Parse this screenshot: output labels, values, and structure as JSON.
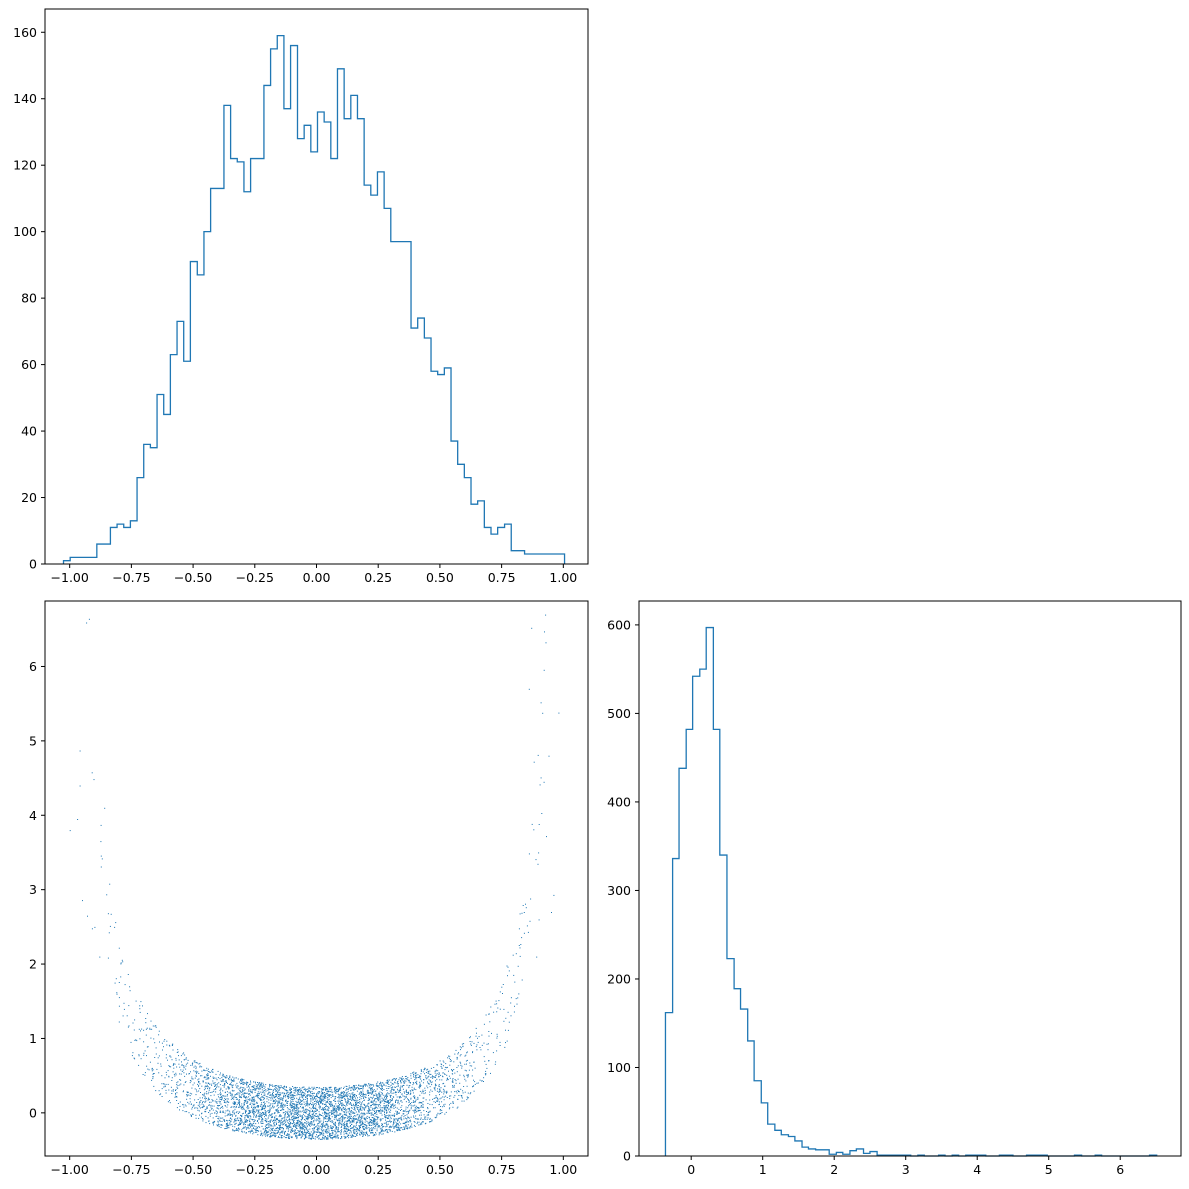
{
  "chart_data": [
    {
      "type": "histogram",
      "panel": "top-left",
      "title": "",
      "xlabel": "",
      "ylabel": "",
      "xlim": [
        -1.1,
        1.1
      ],
      "ylim": [
        0,
        167
      ],
      "xticks": [
        -1.0,
        -0.75,
        -0.5,
        -0.25,
        0.0,
        0.25,
        0.5,
        0.75,
        1.0
      ],
      "xtick_labels": [
        "−1.00",
        "−0.75",
        "−0.50",
        "−0.25",
        "0.00",
        "0.25",
        "0.50",
        "0.75",
        "1.00"
      ],
      "yticks": [
        0,
        20,
        40,
        60,
        80,
        100,
        120,
        140,
        160
      ],
      "ytick_labels": [
        "0",
        "20",
        "40",
        "60",
        "80",
        "100",
        "120",
        "140",
        "160"
      ],
      "histtype": "step",
      "color": "#1f77b4",
      "bin_edges": [
        -1.025,
        -0.998,
        -0.971,
        -0.944,
        -0.917,
        -0.89,
        -0.862,
        -0.835,
        -0.808,
        -0.781,
        -0.754,
        -0.727,
        -0.7,
        -0.673,
        -0.646,
        -0.619,
        -0.592,
        -0.565,
        -0.538,
        -0.511,
        -0.483,
        -0.456,
        -0.429,
        -0.402,
        -0.375,
        -0.348,
        -0.321,
        -0.294,
        -0.267,
        -0.24,
        -0.213,
        -0.186,
        -0.159,
        -0.132,
        -0.105,
        -0.077,
        -0.05,
        -0.023,
        0.004,
        0.031,
        0.058,
        0.085,
        0.112,
        0.139,
        0.166,
        0.193,
        0.22,
        0.247,
        0.274,
        0.301,
        0.329,
        0.356,
        0.383,
        0.41,
        0.437,
        0.464,
        0.491,
        0.518,
        0.545,
        0.572,
        0.599,
        0.626,
        0.653,
        0.68,
        0.707,
        0.734,
        0.762,
        0.789,
        0.816,
        0.843,
        0.87,
        0.897,
        0.924,
        0.951,
        0.978,
        1.005
      ],
      "counts": [
        1,
        2,
        2,
        2,
        2,
        6,
        6,
        11,
        12,
        11,
        13,
        26,
        36,
        35,
        51,
        45,
        63,
        73,
        61,
        91,
        87,
        100,
        113,
        113,
        138,
        122,
        121,
        112,
        122,
        122,
        144,
        155,
        159,
        137,
        156,
        128,
        132,
        124,
        136,
        133,
        122,
        149,
        134,
        141,
        134,
        114,
        111,
        118,
        107,
        97,
        97,
        97,
        71,
        74,
        68,
        58,
        57,
        59,
        37,
        30,
        26,
        18,
        19,
        11,
        9,
        11,
        12,
        4,
        4,
        3,
        3,
        3,
        3,
        3,
        3
      ]
    },
    {
      "type": "scatter",
      "panel": "bottom-left",
      "title": "",
      "xlabel": "",
      "ylabel": "",
      "xlim": [
        -1.1,
        1.1
      ],
      "ylim": [
        -0.58,
        6.88
      ],
      "xticks": [
        -1.0,
        -0.75,
        -0.5,
        -0.25,
        0.0,
        0.25,
        0.5,
        0.75,
        1.0
      ],
      "xtick_labels": [
        "−1.00",
        "−0.75",
        "−0.50",
        "−0.25",
        "0.00",
        "0.25",
        "0.50",
        "0.75",
        "1.00"
      ],
      "yticks": [
        0,
        1,
        2,
        3,
        4,
        5,
        6
      ],
      "ytick_labels": [
        "0",
        "1",
        "2",
        "3",
        "4",
        "5",
        "6"
      ],
      "marker": "pixel",
      "color": "#1f77b4",
      "relation": "y ≈ x²/(1−x²) + noise",
      "x": [
        -1.0,
        -0.97,
        -0.96,
        -0.96,
        -0.93,
        -0.9,
        -0.88,
        -0.86,
        -0.84,
        -0.82,
        0.82,
        0.84,
        0.86,
        0.87,
        0.88,
        0.9,
        0.92,
        0.93,
        0.94,
        0.96,
        0.98,
        -0.95,
        -0.91,
        -0.87,
        0.89,
        0.95
      ],
      "y": [
        3.8,
        3.95,
        4.4,
        4.87,
        2.65,
        2.5,
        2.1,
        4.1,
        3.08,
        2.5,
        2.48,
        2.7,
        5.7,
        6.52,
        4.72,
        2.6,
        4.45,
        3.72,
        4.8,
        2.93,
        5.38,
        2.86,
        2.48,
        3.42,
        2.1,
        2.7
      ],
      "note": "plus ~5000 dense points forming a U-shaped band between about -0.35 and 2"
    },
    {
      "type": "histogram",
      "panel": "bottom-right",
      "title": "",
      "xlabel": "",
      "ylabel": "",
      "xlim": [
        -0.73,
        6.85
      ],
      "ylim": [
        0,
        627
      ],
      "xticks": [
        0,
        1,
        2,
        3,
        4,
        5,
        6
      ],
      "xtick_labels": [
        "0",
        "1",
        "2",
        "3",
        "4",
        "5",
        "6"
      ],
      "yticks": [
        0,
        100,
        200,
        300,
        400,
        500,
        600
      ],
      "ytick_labels": [
        "0",
        "100",
        "200",
        "300",
        "400",
        "500",
        "600"
      ],
      "histtype": "step",
      "color": "#1f77b4",
      "bin_edges": [
        -0.36,
        -0.26,
        -0.17,
        -0.07,
        0.02,
        0.12,
        0.21,
        0.31,
        0.4,
        0.5,
        0.6,
        0.69,
        0.79,
        0.88,
        0.98,
        1.07,
        1.17,
        1.26,
        1.36,
        1.45,
        1.55,
        1.64,
        1.74,
        1.83,
        1.93,
        2.03,
        2.12,
        2.22,
        2.31,
        2.41,
        2.5,
        2.6,
        2.69,
        2.79,
        2.88,
        2.98,
        3.07,
        3.17,
        3.26,
        3.36,
        3.46,
        3.55,
        3.65,
        3.74,
        3.84,
        3.93,
        4.03,
        4.12,
        4.22,
        4.31,
        4.41,
        4.5,
        4.6,
        4.69,
        4.79,
        4.89,
        4.98,
        5.08,
        5.17,
        5.27,
        5.36,
        5.46,
        5.55,
        5.65,
        5.74,
        5.84,
        5.93,
        6.03,
        6.12,
        6.22,
        6.32,
        6.41,
        6.51
      ],
      "counts": [
        162,
        336,
        438,
        482,
        542,
        550,
        597,
        482,
        340,
        223,
        189,
        166,
        130,
        85,
        60,
        36,
        29,
        24,
        22,
        17,
        10,
        8,
        7,
        7,
        2,
        4,
        2,
        6,
        8,
        3,
        5,
        1,
        1,
        1,
        1,
        1,
        0,
        1,
        0,
        0,
        1,
        0,
        1,
        0,
        1,
        1,
        1,
        0,
        0,
        1,
        1,
        0,
        0,
        1,
        1,
        1,
        0,
        0,
        0,
        0,
        1,
        0,
        0,
        1,
        0,
        0,
        0,
        0,
        0,
        0,
        0,
        1
      ]
    }
  ]
}
